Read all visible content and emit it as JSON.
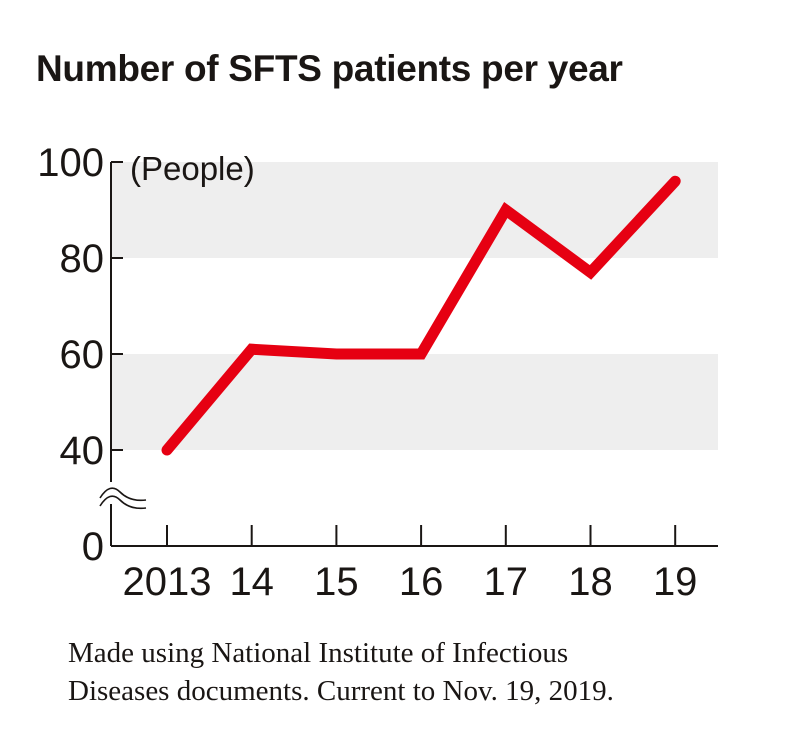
{
  "chart_data": {
    "type": "line",
    "title": "Number of SFTS patients per year",
    "ylabel": "(People)",
    "categories": [
      "2013",
      "14",
      "15",
      "16",
      "17",
      "18",
      "19"
    ],
    "series": [
      {
        "values": [
          40,
          61,
          60,
          60,
          90,
          77,
          96
        ],
        "color": "#e60012"
      }
    ],
    "ylim": [
      40,
      100
    ],
    "yticks": [
      "100",
      "80",
      "60",
      "40",
      "0"
    ],
    "axis_break": true,
    "bands": [
      [
        80,
        100
      ],
      [
        40,
        60
      ]
    ],
    "band_color": "#eeeeee",
    "source": [
      "Made using National Institute of Infectious",
      "Diseases documents. Current to Nov. 19, 2019."
    ]
  }
}
